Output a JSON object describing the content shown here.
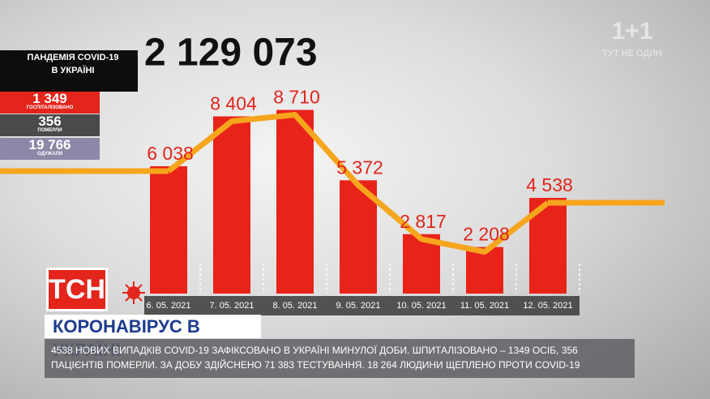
{
  "chart_data": {
    "type": "bar",
    "categories": [
      "6. 05. 2021",
      "7. 05. 2021",
      "8. 05. 2021",
      "9. 05. 2021",
      "10. 05. 2021",
      "11. 05. 2021",
      "12. 05. 2021"
    ],
    "values": [
      6038,
      8404,
      8710,
      5372,
      2817,
      2208,
      4538
    ],
    "value_labels": [
      "6 038",
      "8 404",
      "8 710",
      "5 372",
      "2 817",
      "2 208",
      "4 538"
    ],
    "color": "#e8231a",
    "line_color": "#f6a51c",
    "ylim": [
      0,
      10000
    ]
  },
  "total": "2 129 073",
  "sidebar": {
    "title": "ПАНДЕМІЯ COVID-19 В УКРАЇНІ",
    "items": [
      {
        "value": "1 349",
        "label": "ГОСПІТАЛІЗОВАНО"
      },
      {
        "value": "356",
        "label": "ПОМЕРЛИ"
      },
      {
        "value": "19 766",
        "label": "ОДУЖАЛИ"
      }
    ]
  },
  "channel": {
    "logo": "1+1",
    "slogan": "ТУТ НЕ ОДИН"
  },
  "show": "ТСН",
  "headline": "КОРОНАВІРУС В УКРАЇНІ",
  "ticker": "4538 НОВИХ ВИПАДКІВ COVID-19 ЗАФІКСОВАНО В УКРАЇНІ МИНУЛОЇ ДОБИ. ШПИТАЛІЗОВАНО – 1349 ОСІБ, 356 ПАЦІЄНТІВ ПОМЕРЛИ. ЗА ДОБУ ЗДІЙСНЕНО 71 383 ТЕСТУВАННЯ. 18 264 ЛЮДИНИ ЩЕПЛЕНО ПРОТИ COVID-19"
}
